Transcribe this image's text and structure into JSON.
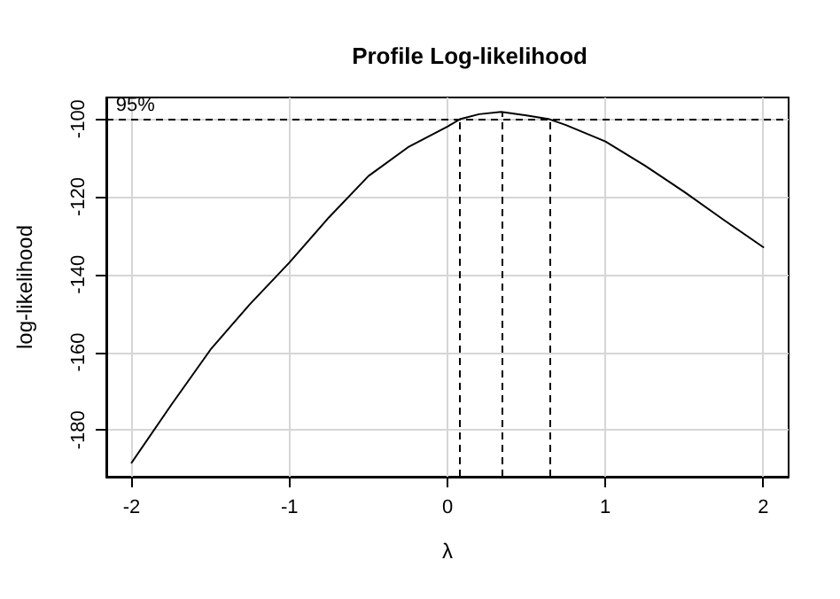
{
  "chart_data": {
    "type": "line",
    "title": "Profile Log-likelihood",
    "xlabel": "λ",
    "ylabel": "log-likelihood",
    "x": [
      -2,
      -1.75,
      -1.5,
      -1.25,
      -1,
      -0.75,
      -0.5,
      -0.25,
      0,
      0.078,
      0.2,
      0.34,
      0.5,
      0.646,
      0.75,
      1,
      1.25,
      1.5,
      1.75,
      2
    ],
    "series": [
      {
        "color": "#000000",
        "values": [
          -188.4,
          -173.6,
          -159.3,
          -147.6,
          -136.9,
          -125.3,
          -114.7,
          -107.3,
          -102,
          -100.1,
          -98.8,
          -98.2,
          -99.1,
          -100.1,
          -101.6,
          -105.8,
          -112,
          -118.8,
          -126,
          -133
        ]
      }
    ],
    "xlim": [
      -2.16,
      2.16
    ],
    "xticks": [
      -2,
      -1,
      0,
      1,
      2
    ],
    "ylim": [
      -192,
      -94.5
    ],
    "yticks": [
      -180,
      -160,
      -140,
      -120,
      -100
    ],
    "ref_lines": [
      {
        "axis": "y",
        "value": -100,
        "line_style": "dashed",
        "color": "#000000"
      },
      {
        "axis": "x",
        "value": 0.078,
        "line_style": "dashed",
        "color": "#000000"
      },
      {
        "axis": "x",
        "value": 0.34,
        "line_style": "dashed",
        "color": "#000000"
      },
      {
        "axis": "x",
        "value": 0.646,
        "line_style": "dashed",
        "color": "#000000"
      }
    ],
    "annotations": [
      {
        "text": "95%",
        "x": -2.1,
        "y": -100
      }
    ],
    "grid": true,
    "marker": "none",
    "line_style": "solid"
  }
}
